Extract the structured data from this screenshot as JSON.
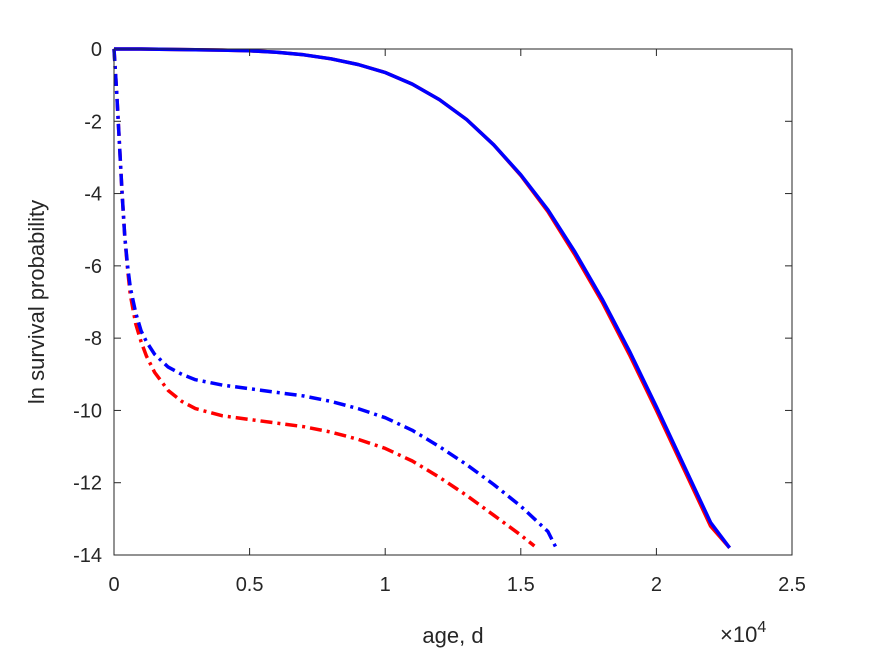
{
  "chart_data": {
    "type": "line",
    "title": "",
    "xlabel": "age, d",
    "ylabel": "ln survival probability",
    "x_exponent_label": "×10",
    "x_exponent_power": "4",
    "xlim": [
      0,
      25000
    ],
    "ylim": [
      -14,
      0
    ],
    "xticks": [
      0,
      5000,
      10000,
      15000,
      20000,
      25000
    ],
    "xtick_labels": [
      "0",
      "0.5",
      "1",
      "1.5",
      "2",
      "2.5"
    ],
    "yticks": [
      0,
      -2,
      -4,
      -6,
      -8,
      -10,
      -12,
      -14
    ],
    "ytick_labels": [
      "0",
      "-2",
      "-4",
      "-6",
      "-8",
      "-10",
      "-12",
      "-14"
    ],
    "grid": false,
    "legend": "none",
    "series": [
      {
        "color": "#ff0000",
        "style": "solid",
        "x": [
          0,
          1000,
          2000,
          3000,
          4000,
          5000,
          6000,
          7000,
          8000,
          9000,
          10000,
          11000,
          12000,
          13000,
          14000,
          15000,
          16000,
          17000,
          18000,
          19000,
          20000,
          21000,
          22000,
          22700
        ],
        "y": [
          0,
          0,
          -0.01,
          -0.02,
          -0.03,
          -0.05,
          -0.09,
          -0.16,
          -0.27,
          -0.43,
          -0.65,
          -0.97,
          -1.4,
          -1.95,
          -2.65,
          -3.5,
          -4.5,
          -5.7,
          -7.0,
          -8.45,
          -10.0,
          -11.6,
          -13.2,
          -13.8
        ]
      },
      {
        "color": "#0000ff",
        "style": "solid",
        "x": [
          0,
          1000,
          2000,
          3000,
          4000,
          5000,
          6000,
          7000,
          8000,
          9000,
          10000,
          11000,
          12000,
          13000,
          14000,
          15000,
          16000,
          17000,
          18000,
          19000,
          20000,
          21000,
          22000,
          22700
        ],
        "y": [
          0,
          0,
          -0.01,
          -0.02,
          -0.03,
          -0.05,
          -0.09,
          -0.16,
          -0.27,
          -0.43,
          -0.65,
          -0.97,
          -1.4,
          -1.95,
          -2.65,
          -3.48,
          -4.45,
          -5.62,
          -6.92,
          -8.35,
          -9.9,
          -11.5,
          -13.1,
          -13.8
        ]
      },
      {
        "color": "#ff0000",
        "style": "dashdot",
        "x": [
          0,
          100,
          200,
          300,
          400,
          500,
          600,
          800,
          1000,
          1200,
          1500,
          2000,
          2500,
          3000,
          4000,
          5000,
          6000,
          7000,
          8000,
          9000,
          10000,
          11000,
          12000,
          13000,
          14000,
          15000,
          15500
        ],
        "y": [
          0,
          -1.2,
          -2.6,
          -4.0,
          -5.2,
          -6.1,
          -6.8,
          -7.6,
          -8.1,
          -8.5,
          -8.95,
          -9.45,
          -9.75,
          -9.95,
          -10.15,
          -10.25,
          -10.35,
          -10.45,
          -10.6,
          -10.8,
          -11.05,
          -11.4,
          -11.85,
          -12.35,
          -12.9,
          -13.45,
          -13.75
        ]
      },
      {
        "color": "#0000ff",
        "style": "dashdot",
        "x": [
          0,
          100,
          200,
          300,
          400,
          500,
          600,
          800,
          1000,
          1200,
          1500,
          2000,
          2500,
          3000,
          4000,
          5000,
          6000,
          7000,
          8000,
          9000,
          10000,
          11000,
          12000,
          13000,
          14000,
          15000,
          16000,
          16300
        ],
        "y": [
          0,
          -1.2,
          -2.6,
          -4.0,
          -5.2,
          -6.0,
          -6.6,
          -7.3,
          -7.8,
          -8.1,
          -8.45,
          -8.8,
          -9.0,
          -9.15,
          -9.3,
          -9.4,
          -9.5,
          -9.6,
          -9.75,
          -9.95,
          -10.2,
          -10.55,
          -11.0,
          -11.5,
          -12.05,
          -12.65,
          -13.35,
          -13.8
        ]
      }
    ]
  }
}
